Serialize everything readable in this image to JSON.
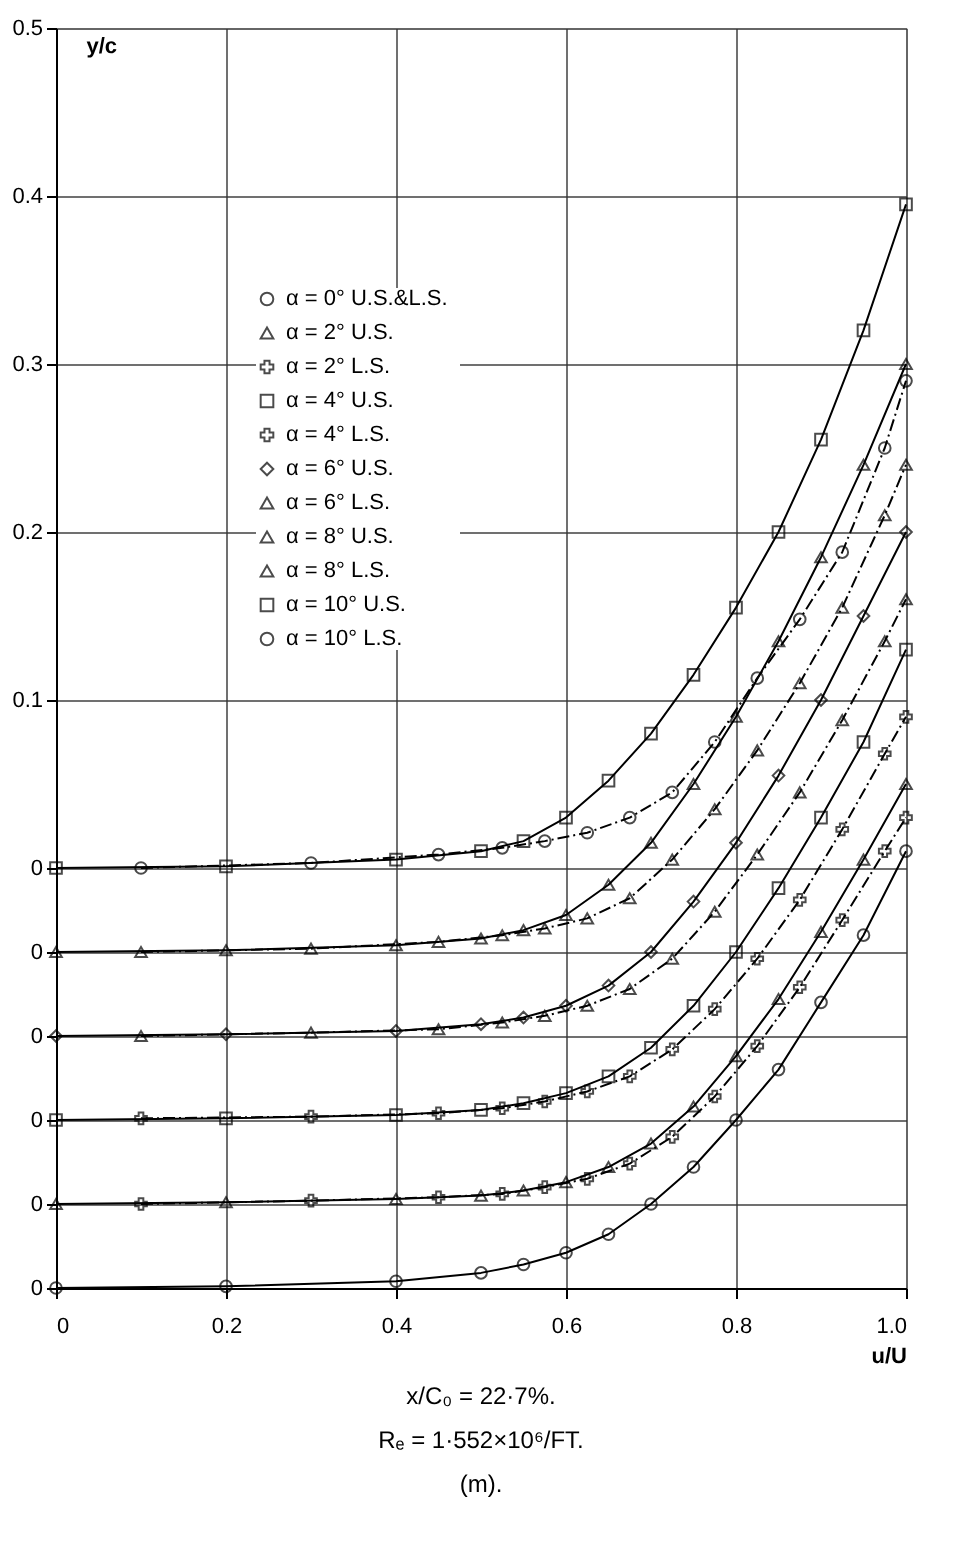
{
  "chart_data": {
    "type": "line",
    "ylabel": "y/c",
    "xlabel": "u/U",
    "legend": "top",
    "grid": true,
    "xlim": [
      0,
      1.0
    ],
    "xticks": [
      0,
      0.2,
      0.4,
      0.6,
      0.8,
      {
        "value": 1,
        "label": "1.0"
      }
    ],
    "ylim": [
      -0.25,
      0.5
    ],
    "yticks": [
      {
        "value": -0.25,
        "label": "0"
      },
      {
        "value": -0.2,
        "label": "0"
      },
      {
        "value": -0.15,
        "label": "0"
      },
      {
        "value": -0.1,
        "label": "0"
      },
      {
        "value": -0.05,
        "label": "0"
      },
      0,
      0.1,
      0.2,
      0.3,
      0.4,
      0.5
    ],
    "x": [
      0,
      0.2,
      0.4,
      0.5,
      0.55,
      0.6,
      0.65,
      0.7,
      0.75,
      0.8,
      0.85,
      0.9,
      0.95,
      1.0
    ],
    "series": [
      {
        "name": "α = 0°   U.S.&L.S.",
        "color": "#000000",
        "marker": "circle",
        "line_style": "solid",
        "values": [
          -0.25,
          -0.249,
          -0.246,
          -0.241,
          -0.236,
          -0.229,
          -0.218,
          -0.2,
          -0.178,
          -0.15,
          -0.12,
          -0.08,
          -0.04,
          0.01
        ]
      },
      {
        "name": "α = 2°   U.S.",
        "color": "#000000",
        "marker": "triangle",
        "line_style": "solid",
        "values": [
          -0.2,
          -0.199,
          -0.197,
          -0.195,
          -0.192,
          -0.187,
          -0.178,
          -0.164,
          -0.142,
          -0.112,
          -0.078,
          -0.038,
          0.005,
          0.05
        ]
      },
      {
        "name": "α = 2°   L.S.",
        "color": "#000000",
        "marker": "cross",
        "line_style": "dashed",
        "x": [
          0.1,
          0.3,
          0.45,
          0.525,
          0.575,
          0.625,
          0.675,
          0.725,
          0.775,
          0.825,
          0.875,
          0.925,
          0.975,
          1.0
        ],
        "values": [
          -0.2,
          -0.198,
          -0.196,
          -0.194,
          -0.19,
          -0.185,
          -0.176,
          -0.16,
          -0.136,
          -0.106,
          -0.071,
          -0.031,
          0.01,
          0.03
        ]
      },
      {
        "name": "α = 4°   U.S.",
        "color": "#000000",
        "marker": "square",
        "line_style": "solid",
        "values": [
          -0.15,
          -0.149,
          -0.147,
          -0.144,
          -0.14,
          -0.134,
          -0.124,
          -0.107,
          -0.082,
          -0.05,
          -0.012,
          0.03,
          0.075,
          0.13
        ]
      },
      {
        "name": "α = 4°   L.S.",
        "color": "#000000",
        "marker": "cross",
        "line_style": "dashed",
        "x": [
          0.1,
          0.3,
          0.45,
          0.525,
          0.575,
          0.625,
          0.675,
          0.725,
          0.775,
          0.825,
          0.875,
          0.925,
          0.975,
          1.0
        ],
        "values": [
          -0.149,
          -0.148,
          -0.146,
          -0.143,
          -0.139,
          -0.133,
          -0.124,
          -0.108,
          -0.084,
          -0.054,
          -0.019,
          0.023,
          0.068,
          0.09
        ]
      },
      {
        "name": "α = 6°   U.S.",
        "color": "#000000",
        "marker": "diamond",
        "line_style": "solid",
        "values": [
          -0.1,
          -0.099,
          -0.097,
          -0.093,
          -0.089,
          -0.082,
          -0.07,
          -0.05,
          -0.02,
          0.015,
          0.055,
          0.1,
          0.15,
          0.2
        ]
      },
      {
        "name": "α = 6°   L.S.",
        "color": "#000000",
        "marker": "triangle",
        "line_style": "dashed",
        "x": [
          0.1,
          0.3,
          0.45,
          0.525,
          0.575,
          0.625,
          0.675,
          0.725,
          0.775,
          0.825,
          0.875,
          0.925,
          0.975,
          1.0
        ],
        "values": [
          -0.1,
          -0.098,
          -0.096,
          -0.092,
          -0.088,
          -0.082,
          -0.072,
          -0.054,
          -0.026,
          0.008,
          0.045,
          0.088,
          0.135,
          0.16
        ]
      },
      {
        "name": "α = 8°   U.S.",
        "color": "#000000",
        "marker": "triangle",
        "line_style": "solid",
        "values": [
          -0.05,
          -0.049,
          -0.046,
          -0.042,
          -0.037,
          -0.028,
          -0.01,
          0.015,
          0.05,
          0.09,
          0.135,
          0.185,
          0.24,
          0.3
        ]
      },
      {
        "name": "α = 8°   L.S.",
        "color": "#000000",
        "marker": "triangle",
        "line_style": "dashed",
        "x": [
          0.1,
          0.3,
          0.45,
          0.525,
          0.575,
          0.625,
          0.675,
          0.725,
          0.775,
          0.825,
          0.875,
          0.925,
          0.975,
          1.0
        ],
        "values": [
          -0.05,
          -0.048,
          -0.044,
          -0.04,
          -0.036,
          -0.03,
          -0.018,
          0.005,
          0.035,
          0.07,
          0.11,
          0.155,
          0.21,
          0.24
        ]
      },
      {
        "name": "α = 10°   U.S.",
        "color": "#000000",
        "marker": "square",
        "line_style": "solid",
        "values": [
          0,
          0.001,
          0.005,
          0.01,
          0.016,
          0.03,
          0.052,
          0.08,
          0.115,
          0.155,
          0.2,
          0.255,
          0.32,
          0.395
        ]
      },
      {
        "name": "α = 10°   L.S.",
        "color": "#000000",
        "marker": "circle",
        "line_style": "dashed",
        "x": [
          0.1,
          0.3,
          0.45,
          0.525,
          0.575,
          0.625,
          0.675,
          0.725,
          0.775,
          0.825,
          0.875,
          0.925,
          0.975,
          1.0
        ],
        "values": [
          0,
          0.003,
          0.008,
          0.012,
          0.016,
          0.021,
          0.03,
          0.045,
          0.075,
          0.113,
          0.148,
          0.188,
          0.25,
          0.29
        ]
      }
    ],
    "annotations": [
      "x/C₀ = 22·7%.",
      "Rₑ = 1·552×10⁶/FT.",
      "(m)."
    ]
  }
}
